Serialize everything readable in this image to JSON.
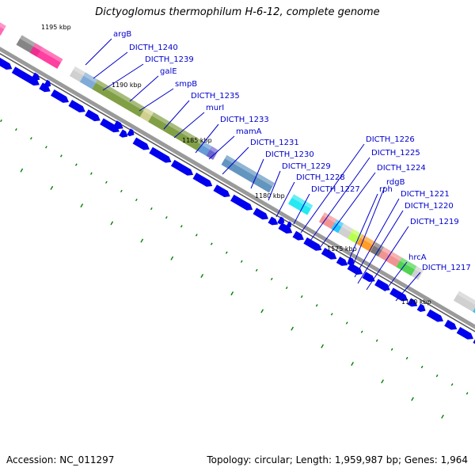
{
  "title": "Dictyoglomus thermophilum H-6-12, complete genome",
  "footer": {
    "accession_label": "Accession: NC_011297",
    "summary": "Topology: circular; Length: 1,959,987 bp; Genes: 1,964"
  },
  "colors": {
    "cds_arrow": "#0000ee",
    "label_text": "#0000cc",
    "leader_line": "#0000cc",
    "backbone": "#808080",
    "tick": "#008000"
  },
  "scale_labels": [
    "1195 kbp",
    "1190 kbp",
    "1185 kbp",
    "1180 kbp",
    "1175 kbp",
    "1170 kbp"
  ],
  "gene_labels": [
    "argB",
    "DICTH_1240",
    "DICTH_1239",
    "galE",
    "smpB",
    "DICTH_1235",
    "murI",
    "DICTH_1233",
    "mamA",
    "DICTH_1231",
    "DICTH_1230",
    "DICTH_1229",
    "DICTH_1228",
    "DICTH_1227",
    "DICTH_1226",
    "DICTH_1225",
    "DICTH_1224",
    "rph",
    "rdgB",
    "DICTH_1221",
    "DICTH_1220",
    "DICTH_1219",
    "hrcA",
    "DICTH_1217"
  ],
  "feature_blocks": [
    {
      "color": "#ff4da6"
    },
    {
      "color": "#707070"
    },
    {
      "color": "#ff1f8f"
    },
    {
      "color": "#c8c8c8"
    },
    {
      "color": "#6a9ccf"
    },
    {
      "color": "#6b8e23"
    },
    {
      "color": "#c8c87a"
    },
    {
      "color": "#6b8e23"
    },
    {
      "color": "#4a8acf"
    },
    {
      "color": "#6a5acd"
    },
    {
      "color": "#4682b4"
    },
    {
      "color": "#00e5ee"
    },
    {
      "color": "#f08080"
    },
    {
      "color": "#00bfff"
    },
    {
      "color": "#c8c8c8"
    },
    {
      "color": "#adff2f"
    },
    {
      "color": "#ff8c00"
    },
    {
      "color": "#606060"
    },
    {
      "color": "#f08080"
    },
    {
      "color": "#32cd32"
    },
    {
      "color": "#c8c8c8"
    },
    {
      "color": "#c8c8c8"
    },
    {
      "color": "#00bfff"
    }
  ]
}
